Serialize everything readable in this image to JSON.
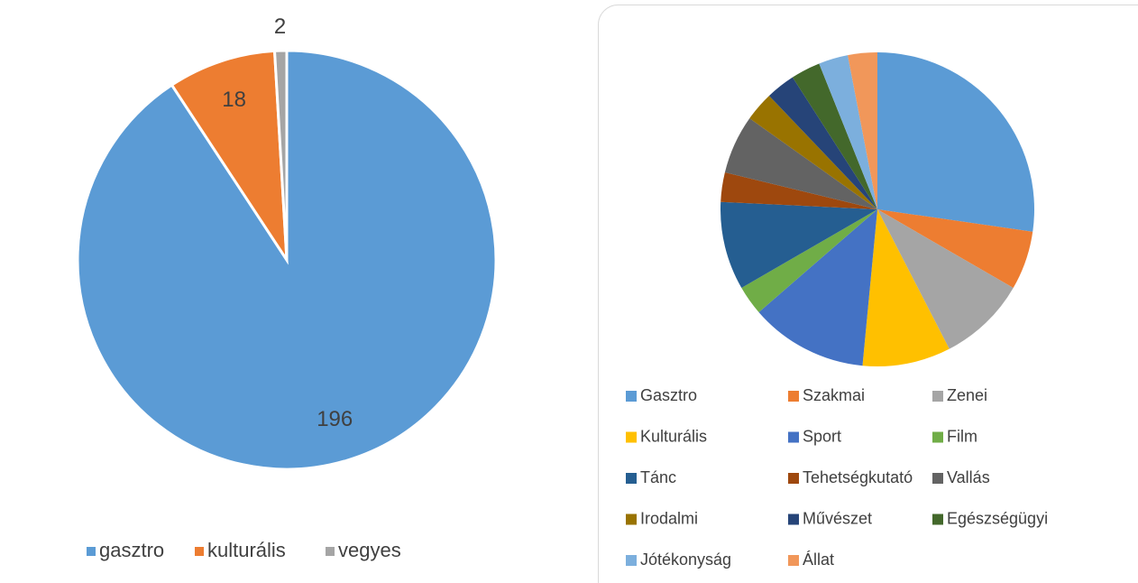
{
  "chart_data": [
    {
      "type": "pie",
      "categories": [
        "gasztro",
        "kulturális",
        "vegyes"
      ],
      "values": [
        196,
        18,
        2
      ],
      "colors": [
        "#5b9bd5",
        "#ed7d31",
        "#a5a5a5"
      ],
      "legend": "bottom",
      "data_labels": true
    },
    {
      "type": "pie",
      "categories": [
        "Gasztro",
        "Szakmai",
        "Zenei",
        "Kulturális",
        "Sport",
        "Film",
        "Tánc",
        "Tehetségkutató",
        "Vallás",
        "Irodalmi",
        "Művészet",
        "Egészségügyi",
        "Jótékonyság",
        "Állat"
      ],
      "values": [
        9,
        2,
        3,
        3,
        4,
        1,
        3,
        1,
        2,
        1,
        1,
        1,
        1,
        1
      ],
      "colors": [
        "#5b9bd5",
        "#ed7d31",
        "#a5a5a5",
        "#ffc000",
        "#4472c4",
        "#70ad47",
        "#255e91",
        "#9e480e",
        "#636363",
        "#997300",
        "#264478",
        "#43682b",
        "#7cafdd",
        "#f1975a"
      ],
      "legend": "bottom",
      "data_labels": false
    }
  ]
}
